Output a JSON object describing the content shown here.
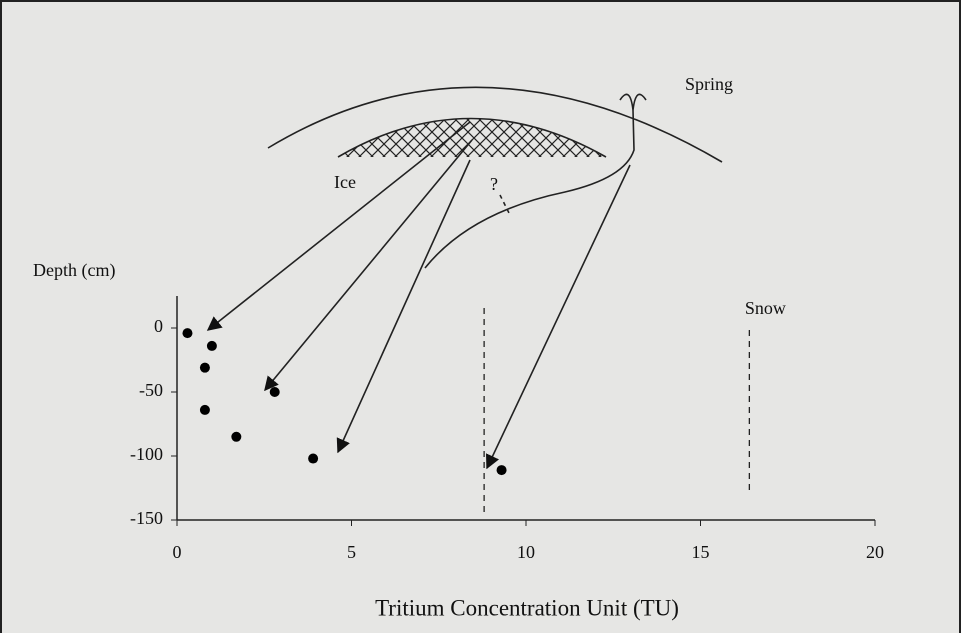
{
  "chart_data": {
    "type": "scatter",
    "diagram_labels": {
      "spring": "Spring",
      "ice": "Ice",
      "question": "?"
    },
    "y_axis_label": "Depth (cm)",
    "x_axis_label": "Tritium Concentration Unit (TU)",
    "x": [
      0.3,
      1.0,
      0.8,
      0.8,
      1.7,
      2.8,
      3.9,
      9.3
    ],
    "values": [
      -4,
      -14,
      -31,
      -64,
      -85,
      -50,
      -102,
      -111
    ],
    "color": "#000000",
    "xlim": [
      0,
      20
    ],
    "ylim": [
      -150,
      25
    ],
    "xticks": [
      0,
      5,
      10,
      15,
      20
    ],
    "yticks": [
      0,
      -50,
      -100,
      -150
    ],
    "reference_lines": [
      {
        "x": 8.8,
        "label": null
      },
      {
        "x": 16.4,
        "label": "Snow"
      }
    ]
  }
}
